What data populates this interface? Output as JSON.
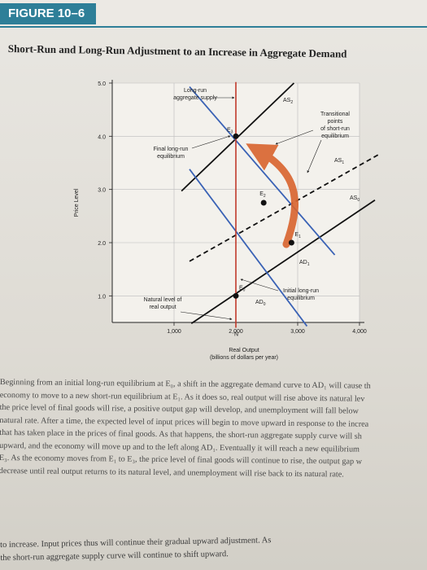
{
  "figure": {
    "label": "FIGURE 10–6",
    "title": "Short-Run and Long-Run Adjustment to an Increase in Aggregate Demand"
  },
  "colors": {
    "accent": "#2e7f98",
    "ad_curves": "#3a62b5",
    "lras": "#c0392b",
    "arrow": "#d9642e",
    "as_curves": "#111111"
  },
  "chart_data": {
    "type": "line",
    "xlabel": "Real Output\n(billions of dollars per year)",
    "ylabel": "Price Level",
    "xlim": [
      0,
      4000
    ],
    "ylim": [
      0.5,
      5.0
    ],
    "x_ticks": [
      "1,000",
      "2,000",
      "3,000",
      "4,000"
    ],
    "y_ticks": [
      "1.0",
      "2.0",
      "3.0",
      "4.0",
      "5.0"
    ],
    "series": [
      {
        "name": "AS2",
        "points": [
          [
            1120,
            2.97
          ],
          [
            2940,
            5.0
          ]
        ]
      },
      {
        "name": "AS1",
        "points": [
          [
            1250,
            1.65
          ],
          [
            4300,
            3.65
          ]
        ]
      },
      {
        "name": "AS0",
        "points": [
          [
            1280,
            0.48
          ],
          [
            4250,
            2.8
          ]
        ]
      },
      {
        "name": "AD0",
        "points": [
          [
            1250,
            3.38
          ],
          [
            3150,
            0.43
          ]
        ]
      },
      {
        "name": "AD1",
        "points": [
          [
            1250,
            4.93
          ],
          [
            3600,
            1.77
          ]
        ]
      },
      {
        "name": "LRAS",
        "points": [
          [
            2000,
            5.02
          ],
          [
            2000,
            0.4
          ]
        ]
      }
    ],
    "points": [
      {
        "label": "E0",
        "x": 2000,
        "y": 1.0
      },
      {
        "label": "E1",
        "x": 2900,
        "y": 2.0
      },
      {
        "label": "E2",
        "x": 2450,
        "y": 2.75
      },
      {
        "label": "E3",
        "x": 2000,
        "y": 4.0
      },
      {
        "label": "N",
        "x": 2000,
        "y": 0.43
      }
    ],
    "annotations": [
      "Long-run aggregate supply",
      "Transitional points of short-run equilibrium",
      "Final long-run equilibrium",
      "Natural level of real output",
      "Initial long-run equilibrium"
    ]
  },
  "caption": {
    "lines": [
      "Beginning from an initial long-run equilibrium at E₀, a shift in the aggregate demand curve to AD₁ will cause th",
      "economy to move to a new short-run equilibrium at E₁. As it does so, real output will rise above its natural lev",
      "the price level of final goods will rise, a positive output gap will develop, and unemployment will fall below",
      "natural rate. After a time, the expected level of input prices will begin to move upward in response to the increa",
      "that has taken place in the prices of final goods. As that happens, the short-run aggregate supply curve will sh",
      "upward, and the economy will move up and to the left along AD₁. Eventually it will reach a new equilibrium",
      "E₃. As the economy moves from E₁ to E₃, the price level of final goods will continue to rise, the output gap w",
      "decrease until real output returns to its natural level, and unemployment will rise back to its natural rate."
    ]
  },
  "bottom_text": {
    "lines": [
      "to increase. Input prices thus will continue their gradual upward adjustment. As",
      "the short-run aggregate supply curve will continue to shift upward."
    ]
  }
}
